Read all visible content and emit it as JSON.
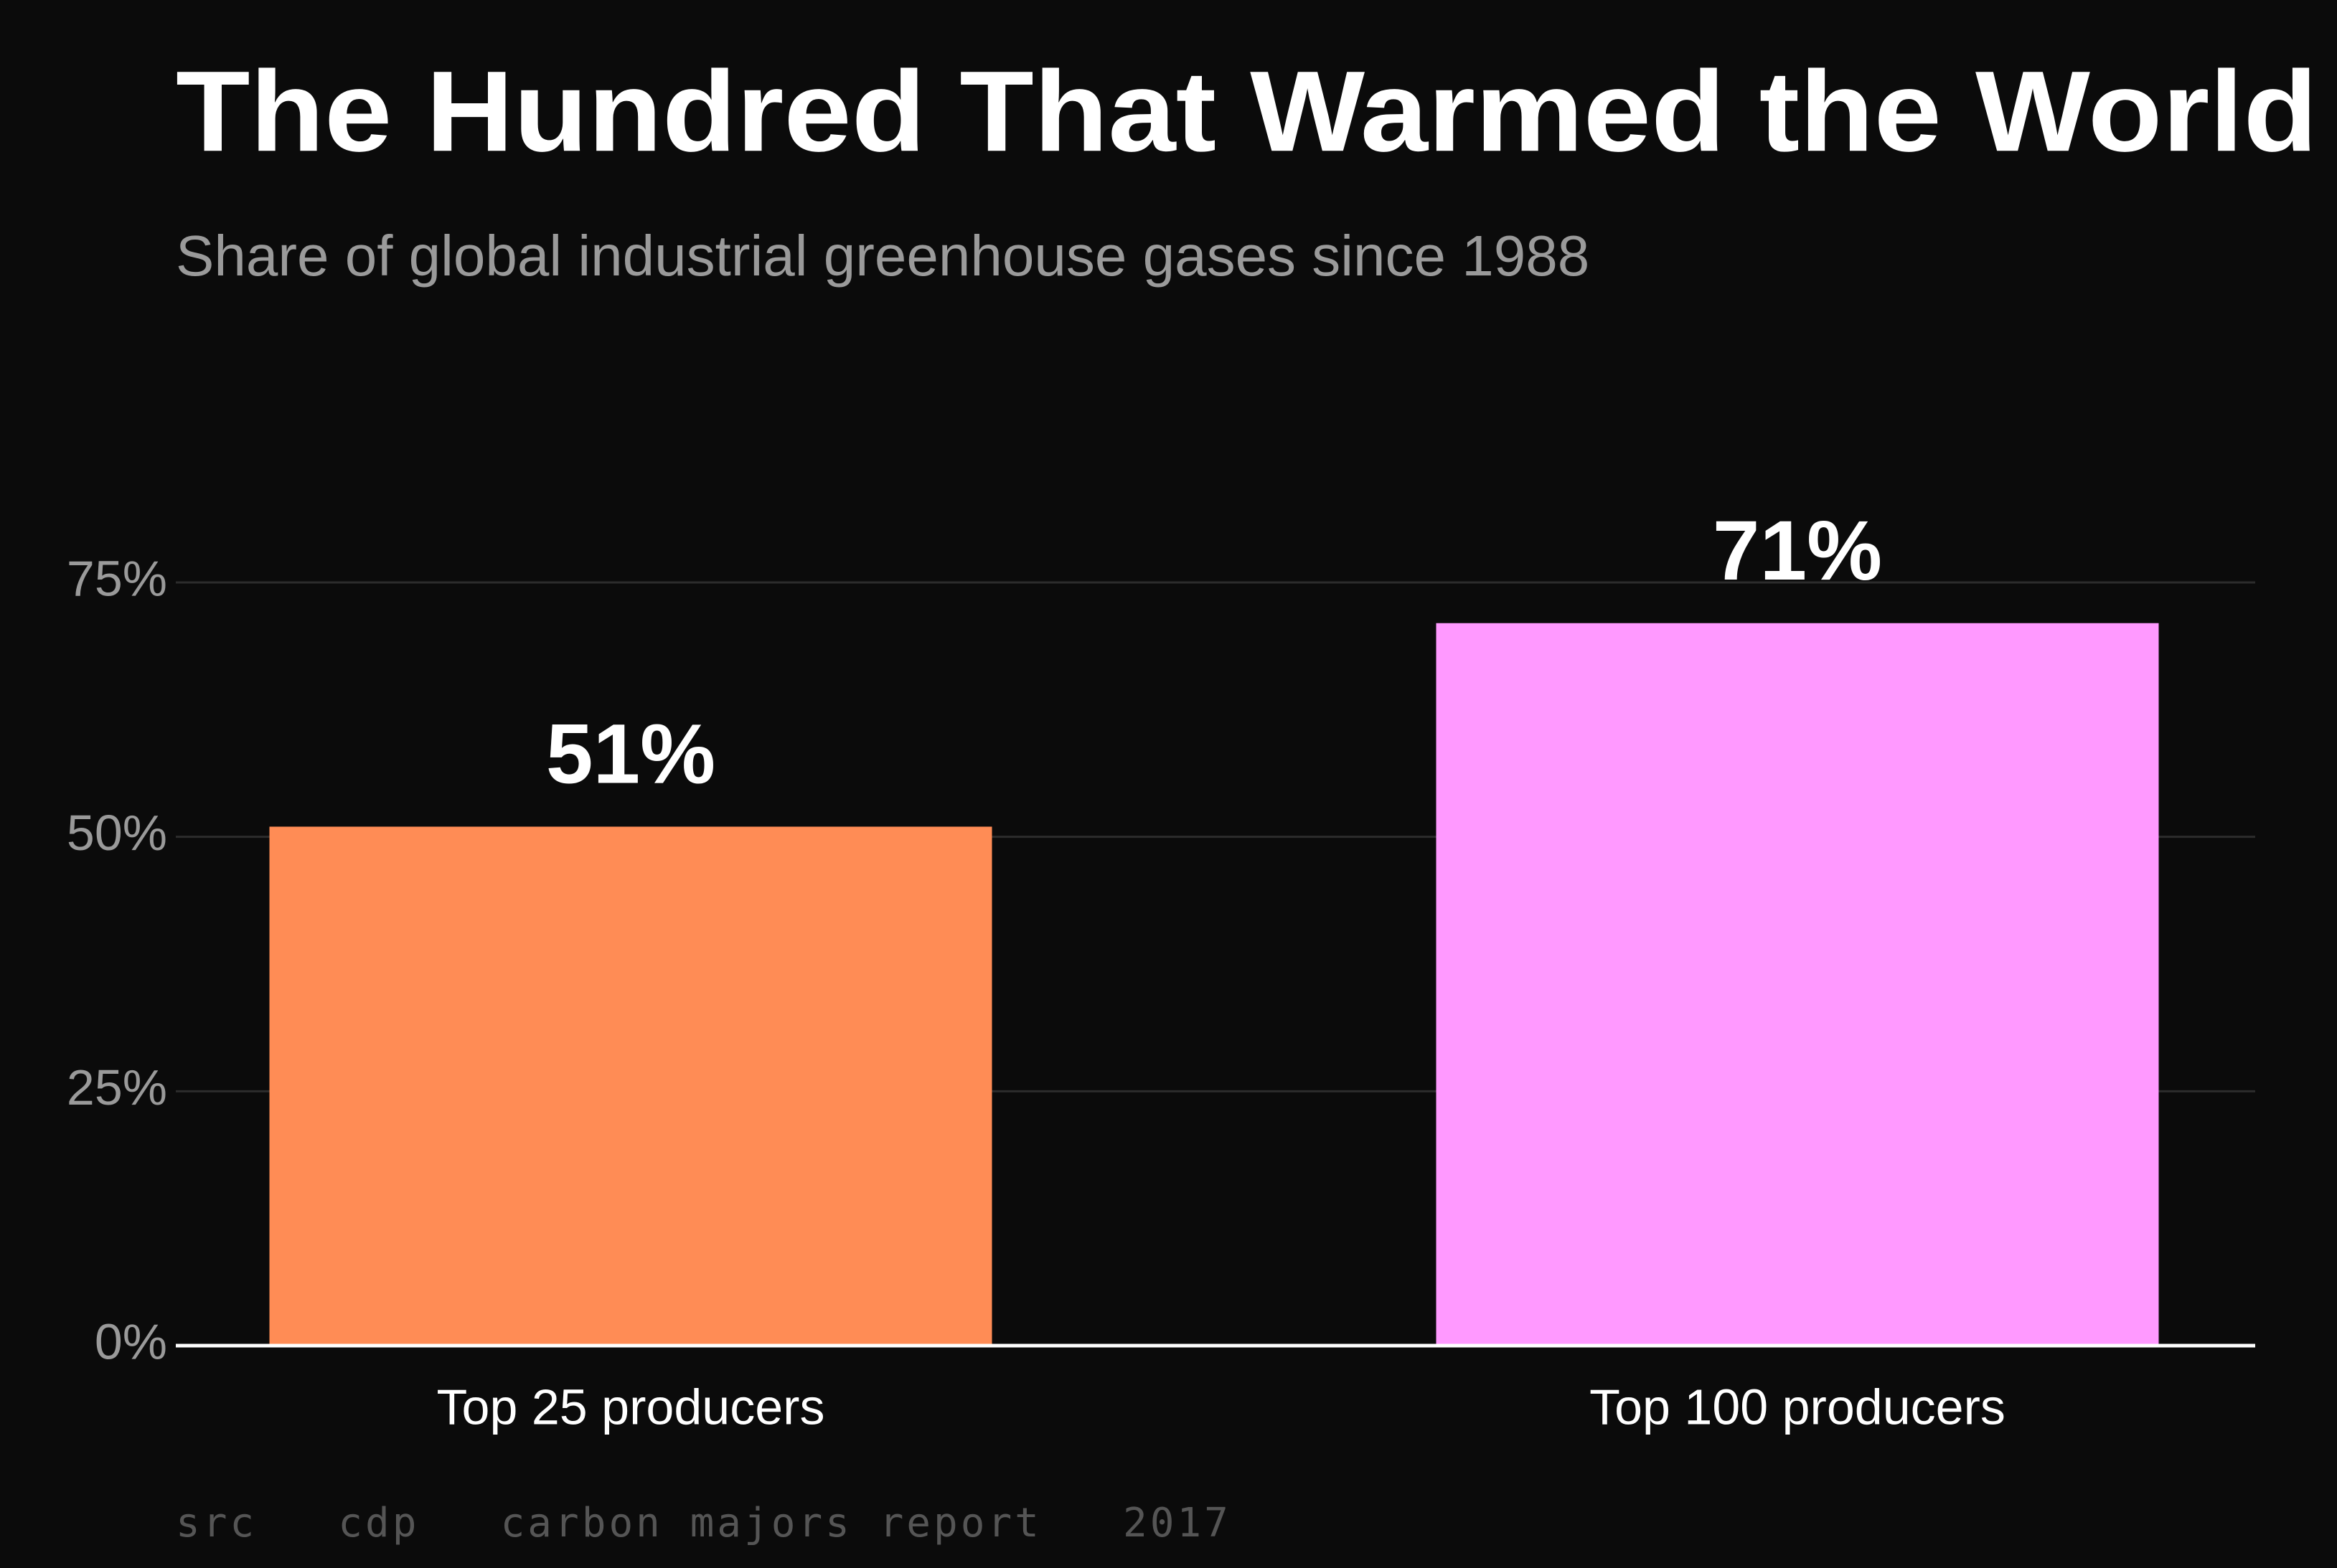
{
  "chart_data": {
    "type": "bar",
    "title": "The Hundred That Warmed the World",
    "subtitle": "Share of global industrial greenhouse gases since 1988",
    "categories": [
      "Top 25 producers",
      "Top 100 producers"
    ],
    "series": [
      {
        "name": "Share",
        "values": [
          51,
          71
        ],
        "value_labels": [
          "51%",
          "71%"
        ],
        "colors": [
          "#ff8c55",
          "#ff99ff"
        ]
      }
    ],
    "ylim": [
      0,
      75
    ],
    "yticks": [
      {
        "value": 0,
        "label": "0%"
      },
      {
        "value": 25,
        "label": "25%"
      },
      {
        "value": 50,
        "label": "50%"
      },
      {
        "value": 75,
        "label": "75%"
      }
    ],
    "grid": true,
    "source": "src   cdp   carbon majors report   2017"
  }
}
